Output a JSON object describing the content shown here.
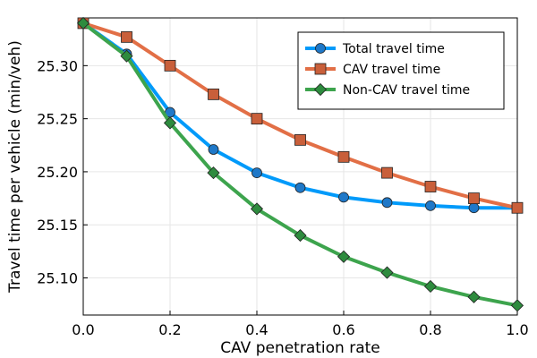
{
  "chart_data": {
    "type": "line",
    "xlabel": "CAV penetration rate",
    "ylabel": "Travel time per vehicle (min/veh)",
    "xlim": [
      0.0,
      1.0
    ],
    "ylim": [
      25.065,
      25.345
    ],
    "xticks": [
      0.0,
      0.2,
      0.4,
      0.6,
      0.8,
      1.0
    ],
    "xtick_labels": [
      "0.0",
      "0.2",
      "0.4",
      "0.6",
      "0.8",
      "1.0"
    ],
    "yticks": [
      25.1,
      25.15,
      25.2,
      25.25,
      25.3
    ],
    "ytick_labels": [
      "25.10",
      "25.15",
      "25.20",
      "25.25",
      "25.30"
    ],
    "grid": true,
    "legend_position": "top-right",
    "x": [
      0.0,
      0.1,
      0.2,
      0.3,
      0.4,
      0.5,
      0.6,
      0.7,
      0.8,
      0.9,
      1.0
    ],
    "series": [
      {
        "name": "Total travel time",
        "color": "#009AFA",
        "marker_color": "#1F78C8",
        "marker": "circle",
        "values": [
          25.34,
          25.311,
          25.256,
          25.221,
          25.199,
          25.185,
          25.176,
          25.171,
          25.168,
          25.166,
          25.166
        ]
      },
      {
        "name": "CAV travel time",
        "color": "#E26F46",
        "marker_color": "#C95F3A",
        "marker": "square",
        "values": [
          25.34,
          25.327,
          25.3,
          25.273,
          25.25,
          25.23,
          25.214,
          25.199,
          25.186,
          25.175,
          25.166
        ]
      },
      {
        "name": "Non-CAV travel time",
        "color": "#3DA44D",
        "marker_color": "#2E8B3E",
        "marker": "diamond",
        "values": [
          25.34,
          25.309,
          25.246,
          25.199,
          25.165,
          25.14,
          25.12,
          25.105,
          25.092,
          25.082,
          25.074
        ]
      }
    ]
  }
}
